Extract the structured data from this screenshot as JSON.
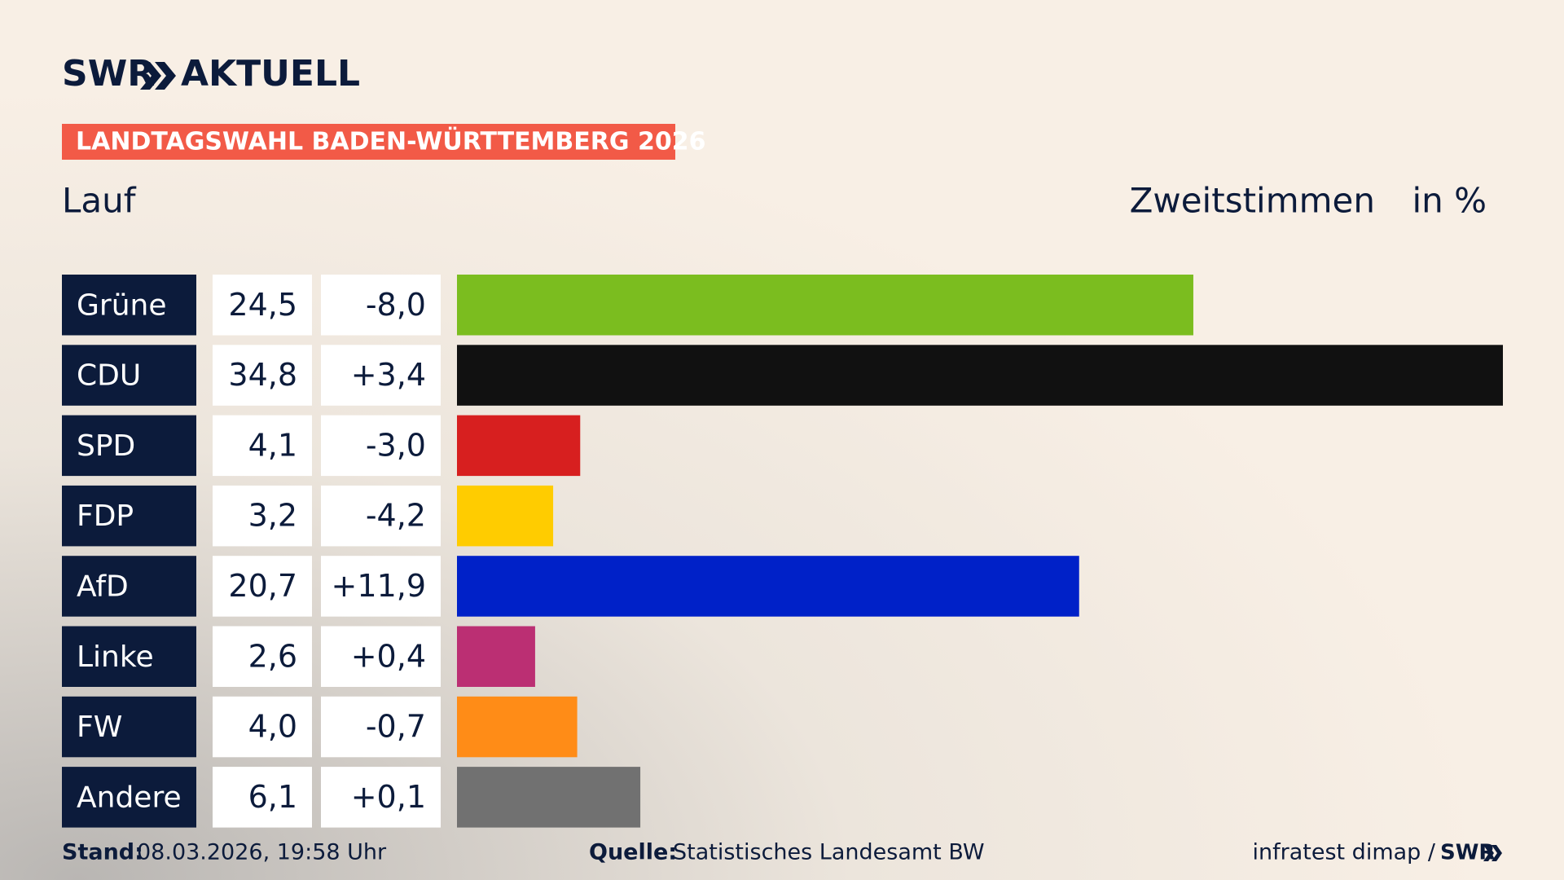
{
  "chart_data": {
    "type": "bar",
    "brand": "SWR",
    "brand_suffix": "AKTUELL",
    "title": "LANDTAGSWAHL BADEN-WÜRTTEMBERG 2026",
    "subtitle": "Lauf",
    "measure": "Zweitstimmen",
    "unit": "in %",
    "categories": [
      "Grüne",
      "CDU",
      "SPD",
      "FDP",
      "AfD",
      "Linke",
      "FW",
      "Andere"
    ],
    "values": [
      24.5,
      34.8,
      4.1,
      3.2,
      20.7,
      2.6,
      4.0,
      6.1
    ],
    "value_labels": [
      "24,5",
      "34,8",
      "4,1",
      "3,2",
      "20,7",
      "2,6",
      "4,0",
      "6,1"
    ],
    "changes": [
      "-8,0",
      "+3,4",
      "-3,0",
      "-4,2",
      "+11,9",
      "+0,4",
      "-0,7",
      "+0,1"
    ],
    "colors": [
      "#7bbd1f",
      "#111111",
      "#d71f1f",
      "#ffcc00",
      "#0021c8",
      "#bb2f73",
      "#ff8c17",
      "#717171"
    ],
    "stand_label": "Stand:",
    "stand": "08.03.2026, 19:58 Uhr",
    "source_label": "Quelle:",
    "source": "Statistisches Landesamt BW",
    "credit": "infratest dimap /",
    "credit_brand": "SWR"
  }
}
